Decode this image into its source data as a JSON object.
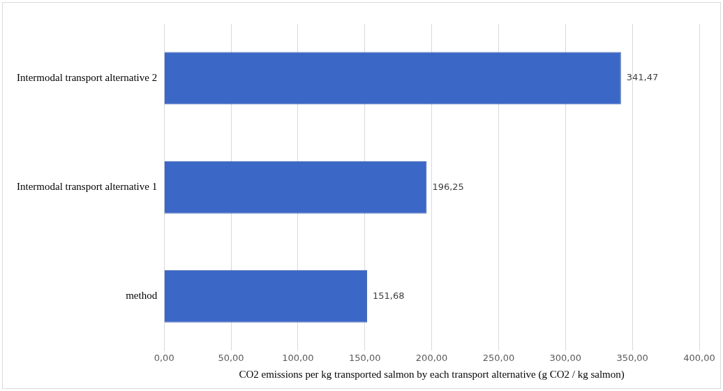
{
  "chart_data": {
    "type": "bar",
    "orientation": "horizontal",
    "categories": [
      "Intermodal transport alternative 2",
      "Intermodal transport alternative 1",
      "method"
    ],
    "values": [
      341.47,
      196.25,
      151.68
    ],
    "value_labels": [
      "341,47",
      "196,25",
      "151,68"
    ],
    "color": "#3b67c6",
    "xlabel": "CO2 emissions per kg transported salmon by each transport alternative (g CO2 / kg salmon)",
    "xlim": [
      0,
      400
    ],
    "xticks": [
      {
        "value": 0,
        "label": "0,00"
      },
      {
        "value": 50,
        "label": "50,00"
      },
      {
        "value": 100,
        "label": "100,00"
      },
      {
        "value": 150,
        "label": "150,00"
      },
      {
        "value": 200,
        "label": "200,00"
      },
      {
        "value": 250,
        "label": "250,00"
      },
      {
        "value": 300,
        "label": "300,00"
      },
      {
        "value": 350,
        "label": "350,00"
      },
      {
        "value": 400,
        "label": "400,00"
      }
    ],
    "grid": "x",
    "legend": false
  }
}
